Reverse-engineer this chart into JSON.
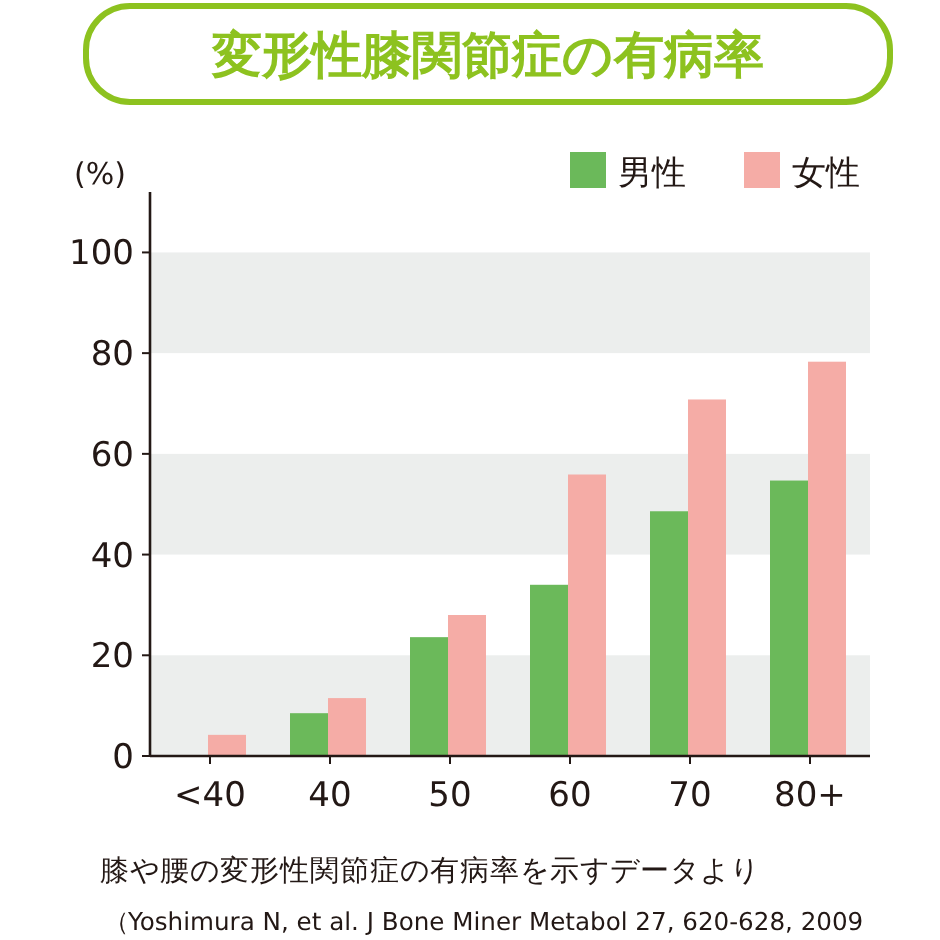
{
  "chart_data": {
    "type": "bar",
    "title": "変形性膝関節症の有病率",
    "ylabel": "(%)",
    "categories": [
      "<40",
      "40",
      "50",
      "60",
      "70",
      "80+"
    ],
    "series": [
      {
        "name": "男性",
        "color": "#6bb95a",
        "values": [
          null,
          8.5,
          23.6,
          34.0,
          48.6,
          54.7
        ]
      },
      {
        "name": "女性",
        "color": "#f5aca6",
        "values": [
          4.2,
          11.5,
          28.0,
          55.9,
          70.8,
          78.3
        ]
      }
    ],
    "ylim": [
      0,
      112
    ],
    "yticks": [
      0,
      20,
      40,
      60,
      80,
      100
    ],
    "bands": [
      {
        "axis": "y",
        "from": 0,
        "to": 20,
        "color": "#eceeed"
      },
      {
        "axis": "y",
        "from": 40,
        "to": 60,
        "color": "#eceeed"
      },
      {
        "axis": "y",
        "from": 80,
        "to": 100,
        "color": "#eceeed"
      }
    ],
    "grid": false,
    "legend": "top right",
    "annotations": [
      "膝や腰の変形性関節症の有病率を示すデータより",
      "（Yoshimura N, et al. J Bone Miner Metabol 27, 620-628, 2009"
    ]
  }
}
